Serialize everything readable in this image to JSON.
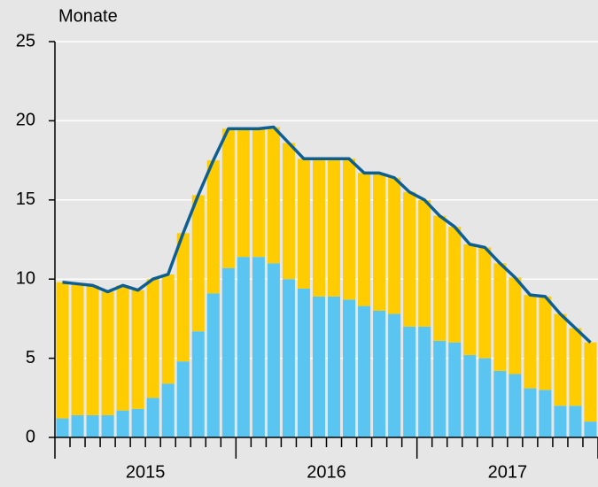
{
  "chart_data": {
    "type": "bar",
    "stacked": true,
    "y_axis_label": "Monate",
    "categories": [
      null,
      null,
      null,
      null,
      null,
      null,
      null,
      null,
      null,
      null,
      null,
      null,
      null,
      null,
      null,
      null,
      null,
      null,
      null,
      null,
      null,
      null,
      null,
      null,
      null,
      null,
      null,
      null,
      null,
      null,
      null,
      null,
      null,
      null,
      null,
      null
    ],
    "year_labels": [
      "2015",
      "2016",
      "2017"
    ],
    "series": [
      {
        "color": "#5bc5f2",
        "values": [
          1.2,
          1.4,
          1.4,
          1.4,
          1.7,
          1.8,
          2.5,
          3.4,
          4.8,
          6.7,
          9.1,
          10.7,
          11.4,
          11.4,
          11.0,
          10.0,
          9.4,
          8.9,
          8.9,
          8.7,
          8.3,
          8.0,
          7.8,
          7.0,
          7.0,
          6.1,
          6.0,
          5.2,
          5.0,
          4.2,
          4.0,
          3.1,
          3.0,
          2.0,
          2.0,
          1.0
        ]
      },
      {
        "color": "#ffcc00",
        "values": [
          8.6,
          8.3,
          8.2,
          7.8,
          7.9,
          7.5,
          7.5,
          6.9,
          8.1,
          8.6,
          8.4,
          8.8,
          8.1,
          8.1,
          8.6,
          8.6,
          8.2,
          8.7,
          8.7,
          8.9,
          8.4,
          8.7,
          8.6,
          8.5,
          8.0,
          7.9,
          7.3,
          7.0,
          7.0,
          6.8,
          6.1,
          5.9,
          5.9,
          5.8,
          4.9,
          5.0
        ]
      }
    ],
    "line": {
      "color": "#0e5f91",
      "values": [
        9.8,
        9.7,
        9.6,
        9.2,
        9.6,
        9.3,
        10.0,
        10.3,
        12.9,
        15.3,
        17.5,
        19.5,
        19.5,
        19.5,
        19.6,
        18.6,
        17.6,
        17.6,
        17.6,
        17.6,
        16.7,
        16.7,
        16.4,
        15.5,
        15.0,
        14.0,
        13.3,
        12.2,
        12.0,
        11.0,
        10.1,
        9.0,
        8.9,
        7.8,
        6.9,
        6.0
      ]
    },
    "ylim": [
      0,
      25
    ],
    "yticks": [
      0,
      5,
      10,
      15,
      20,
      25
    ],
    "grid": true
  }
}
